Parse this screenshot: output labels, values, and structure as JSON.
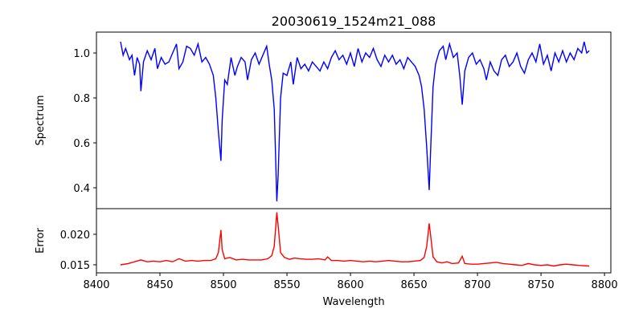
{
  "chart_data": [
    {
      "type": "line",
      "title": "20030619_1524m21_088",
      "xlabel": "",
      "ylabel": "Spectrum",
      "xlim": [
        8400,
        8805
      ],
      "ylim": [
        0.307,
        1.093
      ],
      "yticks": [
        0.4,
        0.6,
        0.8,
        1.0
      ],
      "ytick_labels": [
        "0.4",
        "0.6",
        "0.8",
        "1.0"
      ],
      "color": "#0000ff",
      "x": [
        8419,
        8421,
        8423,
        8426,
        8428,
        8430,
        8432,
        8434,
        8435,
        8437,
        8440,
        8443,
        8446,
        8448,
        8451,
        8454,
        8457,
        8460,
        8463,
        8465,
        8468,
        8471,
        8474,
        8477,
        8480,
        8483,
        8486,
        8489,
        8492,
        8494,
        8496,
        8498,
        8499,
        8501,
        8503,
        8506,
        8509,
        8511,
        8514,
        8517,
        8519,
        8522,
        8525,
        8528,
        8531,
        8534,
        8536,
        8538,
        8540,
        8541,
        8542,
        8543,
        8545,
        8547,
        8550,
        8553,
        8555,
        8558,
        8561,
        8564,
        8567,
        8570,
        8573,
        8576,
        8579,
        8582,
        8585,
        8588,
        8591,
        8594,
        8597,
        8600,
        8603,
        8606,
        8609,
        8612,
        8615,
        8618,
        8621,
        8624,
        8627,
        8630,
        8633,
        8636,
        8639,
        8642,
        8645,
        8648,
        8651,
        8654,
        8656,
        8658,
        8660,
        8662,
        8663,
        8665,
        8667,
        8670,
        8673,
        8675,
        8678,
        8681,
        8684,
        8686,
        8688,
        8690,
        8693,
        8696,
        8699,
        8702,
        8705,
        8707,
        8710,
        8713,
        8716,
        8719,
        8722,
        8725,
        8728,
        8731,
        8734,
        8737,
        8740,
        8743,
        8746,
        8749,
        8752,
        8755,
        8758,
        8761,
        8764,
        8767,
        8770,
        8773,
        8776,
        8779,
        8782,
        8784,
        8786,
        8788
      ],
      "y": [
        1.05,
        0.99,
        1.02,
        0.97,
        0.99,
        0.9,
        0.98,
        0.95,
        0.83,
        0.96,
        1.01,
        0.97,
        1.02,
        0.93,
        0.98,
        0.95,
        0.96,
        1.0,
        1.04,
        0.93,
        0.96,
        1.03,
        1.02,
        0.99,
        1.04,
        0.96,
        0.98,
        0.95,
        0.9,
        0.8,
        0.65,
        0.52,
        0.7,
        0.88,
        0.86,
        0.98,
        0.9,
        0.94,
        0.98,
        0.96,
        0.88,
        0.97,
        1.0,
        0.95,
        0.99,
        1.03,
        0.95,
        0.88,
        0.75,
        0.55,
        0.34,
        0.45,
        0.8,
        0.91,
        0.9,
        0.96,
        0.86,
        0.98,
        0.93,
        0.95,
        0.92,
        0.96,
        0.94,
        0.92,
        0.96,
        0.93,
        0.98,
        1.01,
        0.97,
        0.99,
        0.95,
        1.0,
        0.94,
        1.02,
        0.96,
        1.0,
        0.98,
        1.02,
        0.97,
        0.94,
        0.99,
        0.96,
        0.99,
        0.95,
        0.97,
        0.93,
        0.98,
        0.96,
        0.94,
        0.9,
        0.85,
        0.75,
        0.58,
        0.39,
        0.55,
        0.85,
        0.95,
        1.01,
        1.03,
        0.97,
        1.04,
        0.98,
        1.0,
        0.9,
        0.77,
        0.92,
        0.98,
        1.0,
        0.95,
        0.97,
        0.93,
        0.88,
        0.96,
        0.92,
        0.9,
        0.97,
        0.99,
        0.94,
        0.96,
        1.0,
        0.94,
        0.91,
        0.97,
        1.0,
        0.96,
        1.04,
        0.95,
        0.99,
        0.92,
        1.0,
        0.96,
        1.01,
        0.96,
        1.0,
        0.97,
        1.02,
        1.0,
        1.05,
        1.0,
        1.01
      ]
    },
    {
      "type": "line",
      "xlabel": "Wavelength",
      "ylabel": "Error",
      "xlim": [
        8400,
        8805
      ],
      "ylim": [
        0.01368,
        0.0242
      ],
      "xticks": [
        8400,
        8450,
        8500,
        8550,
        8600,
        8650,
        8700,
        8750,
        8800
      ],
      "xtick_labels": [
        "8400",
        "8450",
        "8500",
        "8550",
        "8600",
        "8650",
        "8700",
        "8750",
        "8800"
      ],
      "yticks": [
        0.015,
        0.02
      ],
      "ytick_labels": [
        "0.015",
        "0.020"
      ],
      "color": "#ff0000",
      "x": [
        8419,
        8425,
        8430,
        8435,
        8440,
        8445,
        8450,
        8455,
        8460,
        8465,
        8470,
        8475,
        8480,
        8485,
        8490,
        8494,
        8496,
        8498,
        8499,
        8501,
        8505,
        8510,
        8515,
        8520,
        8525,
        8530,
        8535,
        8538,
        8540,
        8542,
        8543,
        8545,
        8548,
        8552,
        8556,
        8560,
        8565,
        8570,
        8575,
        8580,
        8582,
        8585,
        8590,
        8595,
        8600,
        8605,
        8610,
        8615,
        8620,
        8625,
        8630,
        8635,
        8640,
        8645,
        8650,
        8655,
        8658,
        8660,
        8662,
        8663,
        8665,
        8668,
        8672,
        8676,
        8680,
        8685,
        8688,
        8690,
        8695,
        8700,
        8705,
        8710,
        8715,
        8720,
        8725,
        8730,
        8735,
        8740,
        8745,
        8750,
        8755,
        8760,
        8765,
        8770,
        8775,
        8780,
        8788
      ],
      "y": [
        0.015,
        0.0152,
        0.0155,
        0.0158,
        0.0155,
        0.0156,
        0.0155,
        0.0157,
        0.0155,
        0.016,
        0.0156,
        0.0157,
        0.0156,
        0.0157,
        0.0157,
        0.016,
        0.017,
        0.0207,
        0.0175,
        0.016,
        0.0162,
        0.0158,
        0.0159,
        0.0158,
        0.0158,
        0.0158,
        0.016,
        0.0165,
        0.018,
        0.0236,
        0.0215,
        0.017,
        0.0162,
        0.0159,
        0.0161,
        0.016,
        0.0159,
        0.0159,
        0.016,
        0.0158,
        0.0163,
        0.0157,
        0.0157,
        0.0156,
        0.0157,
        0.0156,
        0.0155,
        0.0156,
        0.0155,
        0.0156,
        0.0157,
        0.0156,
        0.0155,
        0.0155,
        0.0156,
        0.0157,
        0.0162,
        0.018,
        0.0218,
        0.02,
        0.0163,
        0.0155,
        0.0153,
        0.0155,
        0.0152,
        0.0153,
        0.0164,
        0.0152,
        0.0151,
        0.0151,
        0.0152,
        0.0153,
        0.0154,
        0.0152,
        0.0151,
        0.015,
        0.0149,
        0.0152,
        0.015,
        0.0149,
        0.015,
        0.0148,
        0.015,
        0.0151,
        0.015,
        0.0149,
        0.0148
      ]
    }
  ]
}
